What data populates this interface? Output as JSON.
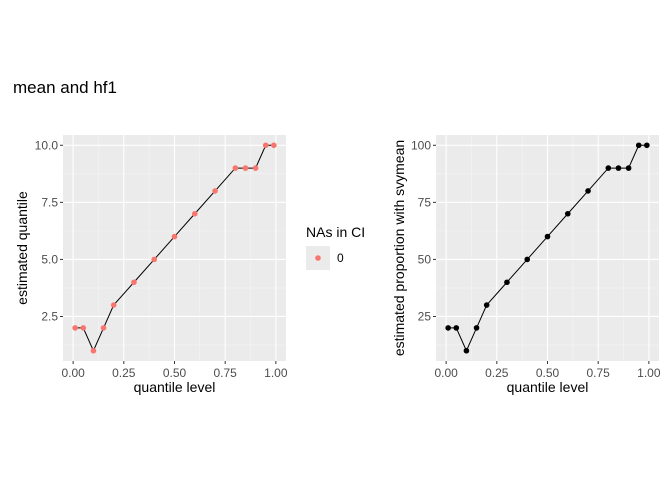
{
  "chart_data": [
    {
      "type": "line",
      "title": "mean and hf1",
      "xlabel": "quantile level",
      "ylabel": "estimated quantile",
      "xlim": [
        -0.05,
        1.05
      ],
      "ylim": [
        0.55,
        10.45
      ],
      "xticks": [
        0.0,
        0.25,
        0.5,
        0.75,
        1.0
      ],
      "xtick_labels": [
        "0.00",
        "0.25",
        "0.50",
        "0.75",
        "1.00"
      ],
      "yticks": [
        2.5,
        5.0,
        7.5,
        10.0
      ],
      "ytick_labels": [
        "2.5",
        "5.0",
        "7.5",
        "10.0"
      ],
      "grid": true,
      "x": [
        0.01,
        0.05,
        0.1,
        0.15,
        0.2,
        0.3,
        0.4,
        0.5,
        0.6,
        0.7,
        0.8,
        0.85,
        0.9,
        0.95,
        0.99
      ],
      "y": [
        2,
        2,
        1,
        2,
        3,
        4,
        5,
        6,
        7,
        8,
        9,
        9,
        9,
        10,
        10
      ],
      "point_color": "#F8766D",
      "line_color": "#000000",
      "legend": {
        "title": "NAs in CI",
        "labels": [
          "0"
        ],
        "colors": [
          "#F8766D"
        ],
        "placement": "right"
      }
    },
    {
      "type": "line",
      "xlabel": "quantile level",
      "ylabel": "estimated proportion with svymean",
      "xlim": [
        -0.05,
        1.05
      ],
      "ylim": [
        5.5,
        104.5
      ],
      "xticks": [
        0.0,
        0.25,
        0.5,
        0.75,
        1.0
      ],
      "xtick_labels": [
        "0.00",
        "0.25",
        "0.50",
        "0.75",
        "1.00"
      ],
      "yticks": [
        25,
        50,
        75,
        100
      ],
      "ytick_labels": [
        "25",
        "50",
        "75",
        "100"
      ],
      "grid": true,
      "x": [
        0.01,
        0.05,
        0.1,
        0.15,
        0.2,
        0.3,
        0.4,
        0.5,
        0.6,
        0.7,
        0.8,
        0.85,
        0.9,
        0.95,
        0.99
      ],
      "y": [
        20,
        20,
        10,
        20,
        30,
        40,
        50,
        60,
        70,
        80,
        90,
        90,
        90,
        100,
        100
      ],
      "point_color": "#000000",
      "line_color": "#000000"
    }
  ]
}
